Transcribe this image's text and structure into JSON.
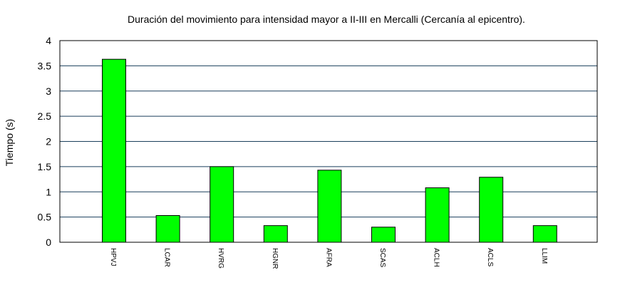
{
  "chart_data": {
    "type": "bar",
    "title": "Duración del movimiento para intensidad mayor a II-III en Mercalli (Cercanía al epicentro).",
    "ylabel": "Tiempo (s)",
    "xlabel": "",
    "categories": [
      "HPVJ",
      "LCAR",
      "HVRG",
      "HGNR",
      "AFRA",
      "SCAS",
      "ACLH",
      "ACLS",
      "LLIM"
    ],
    "values": [
      3.63,
      0.53,
      1.5,
      0.33,
      1.43,
      0.3,
      1.08,
      1.29,
      0.33
    ],
    "ylim": [
      0,
      4
    ],
    "yticks": [
      "0",
      "0.5",
      "1",
      "1.5",
      "2",
      "2.5",
      "3",
      "3.5",
      "4"
    ],
    "grid": true,
    "legend": "none",
    "bar_color": "#00ff00",
    "grid_color": "#1a3f5c"
  }
}
